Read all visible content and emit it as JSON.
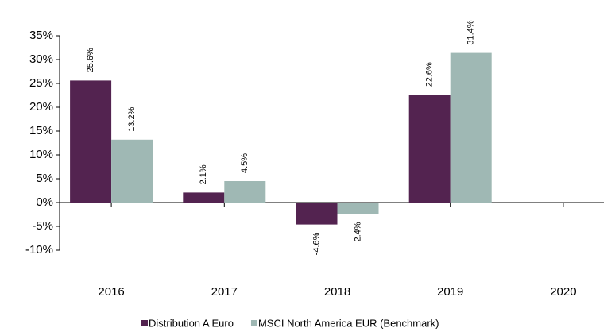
{
  "chart_data": {
    "type": "bar",
    "categories": [
      "2016",
      "2017",
      "2018",
      "2019",
      "2020"
    ],
    "series": [
      {
        "name": "Distribution A Euro",
        "color": "#532350",
        "values": [
          25.6,
          2.1,
          -4.6,
          22.6,
          null
        ],
        "value_labels": [
          "25.6%",
          "2.1%",
          "-4.6%",
          "22.6%",
          null
        ]
      },
      {
        "name": "MSCI North America EUR (Benchmark)",
        "color": "#9fb8b4",
        "values": [
          13.2,
          4.5,
          -2.4,
          31.4,
          null
        ],
        "value_labels": [
          "13.2%",
          "4.5%",
          "-2.4%",
          "31.4%",
          null
        ]
      }
    ],
    "ylim": [
      -10,
      35
    ],
    "yticks": [
      {
        "value": -10,
        "label": "-10%"
      },
      {
        "value": -5,
        "label": "-5%"
      },
      {
        "value": 0,
        "label": "0%"
      },
      {
        "value": 5,
        "label": "5%"
      },
      {
        "value": 10,
        "label": "10%"
      },
      {
        "value": 15,
        "label": "15%"
      },
      {
        "value": 20,
        "label": "20%"
      },
      {
        "value": 25,
        "label": "25%"
      },
      {
        "value": 30,
        "label": "30%"
      },
      {
        "value": 35,
        "label": "35%"
      }
    ],
    "legend": "bottom"
  }
}
